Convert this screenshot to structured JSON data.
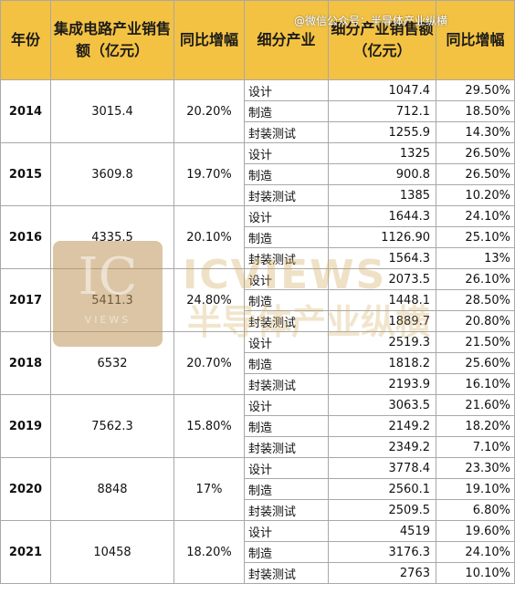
{
  "header": {
    "year": "年份",
    "total": "集成电路产业销售额（亿元）",
    "growth": "同比增幅",
    "segment": "细分产业",
    "segment_sales": "细分产业销售额（亿元）",
    "segment_growth": "同比增幅"
  },
  "credit": "@微信公众号：半导体产业纵横",
  "watermark": {
    "logo": "IC",
    "logo_sub": "VIEWS",
    "text1": "ICVIEWS",
    "text2": "半导体产业纵横"
  },
  "rows": [
    {
      "year": "2014",
      "total": "3015.4",
      "growth": "20.20%",
      "segments": [
        {
          "name": "设计",
          "value": "1047.4",
          "growth": "29.50%"
        },
        {
          "name": "制造",
          "value": "712.1",
          "growth": "18.50%"
        },
        {
          "name": "封装测试",
          "value": "1255.9",
          "growth": "14.30%"
        }
      ]
    },
    {
      "year": "2015",
      "total": "3609.8",
      "growth": "19.70%",
      "segments": [
        {
          "name": "设计",
          "value": "1325",
          "growth": "26.50%"
        },
        {
          "name": "制造",
          "value": "900.8",
          "growth": "26.50%"
        },
        {
          "name": "封装测试",
          "value": "1385",
          "growth": "10.20%"
        }
      ]
    },
    {
      "year": "2016",
      "total": "4335.5",
      "growth": "20.10%",
      "segments": [
        {
          "name": "设计",
          "value": "1644.3",
          "growth": "24.10%"
        },
        {
          "name": "制造",
          "value": "1126.90",
          "growth": "25.10%"
        },
        {
          "name": "封装测试",
          "value": "1564.3",
          "growth": "13%"
        }
      ]
    },
    {
      "year": "2017",
      "total": "5411.3",
      "growth": "24.80%",
      "segments": [
        {
          "name": "设计",
          "value": "2073.5",
          "growth": "26.10%"
        },
        {
          "name": "制造",
          "value": "1448.1",
          "growth": "28.50%"
        },
        {
          "name": "封装测试",
          "value": "1889.7",
          "growth": "20.80%"
        }
      ]
    },
    {
      "year": "2018",
      "total": "6532",
      "growth": "20.70%",
      "segments": [
        {
          "name": "设计",
          "value": "2519.3",
          "growth": "21.50%"
        },
        {
          "name": "制造",
          "value": "1818.2",
          "growth": "25.60%"
        },
        {
          "name": "封装测试",
          "value": "2193.9",
          "growth": "16.10%"
        }
      ]
    },
    {
      "year": "2019",
      "total": "7562.3",
      "growth": "15.80%",
      "segments": [
        {
          "name": "设计",
          "value": "3063.5",
          "growth": "21.60%"
        },
        {
          "name": "制造",
          "value": "2149.2",
          "growth": "18.20%"
        },
        {
          "name": "封装测试",
          "value": "2349.2",
          "growth": "7.10%"
        }
      ]
    },
    {
      "year": "2020",
      "total": "8848",
      "growth": "17%",
      "segments": [
        {
          "name": "设计",
          "value": "3778.4",
          "growth": "23.30%"
        },
        {
          "name": "制造",
          "value": "2560.1",
          "growth": "19.10%"
        },
        {
          "name": "封装测试",
          "value": "2509.5",
          "growth": "6.80%"
        }
      ]
    },
    {
      "year": "2021",
      "total": "10458",
      "growth": "18.20%",
      "segments": [
        {
          "name": "设计",
          "value": "4519",
          "growth": "19.60%"
        },
        {
          "name": "制造",
          "value": "3176.3",
          "growth": "24.10%"
        },
        {
          "name": "封装测试",
          "value": "2763",
          "growth": "10.10%"
        }
      ]
    }
  ]
}
